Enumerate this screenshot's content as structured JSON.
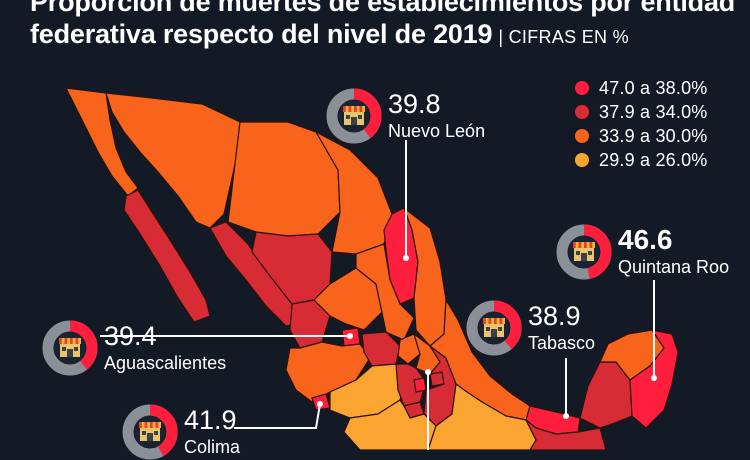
{
  "title": {
    "line1": "Proporción de muertes de establecimientos por entidad",
    "line2": "federativa respecto del nivel de 2019",
    "unit": "| CIFRAS EN %"
  },
  "legend": [
    {
      "label": "47.0 a 38.0%",
      "color": "#ff1f3d"
    },
    {
      "label": "37.9 a 34.0%",
      "color": "#d72b35"
    },
    {
      "label": "33.9 a 30.0%",
      "color": "#f9641c"
    },
    {
      "label": "29.9 a 26.0%",
      "color": "#faa532"
    }
  ],
  "colors": {
    "background": "#131a26",
    "border": "#2b1208",
    "callout_line": "#ffffff",
    "donut_track": "#8b8f98",
    "donut_fill": "#ff1f3d"
  },
  "callouts": {
    "nuevo_leon": {
      "value": "39.8",
      "name": "Nuevo León",
      "percent": 39.8
    },
    "quintana_roo": {
      "value": "46.6",
      "name": "Quintana Roo",
      "percent": 46.6
    },
    "tabasco": {
      "value": "38.9",
      "name": "Tabasco",
      "percent": 38.9
    },
    "aguascalientes": {
      "value": "39.4",
      "name": "Aguascalientes",
      "percent": 39.4
    },
    "colima": {
      "value": "41.9",
      "name": "Colima",
      "percent": 41.9
    }
  },
  "icon": "store-icon"
}
